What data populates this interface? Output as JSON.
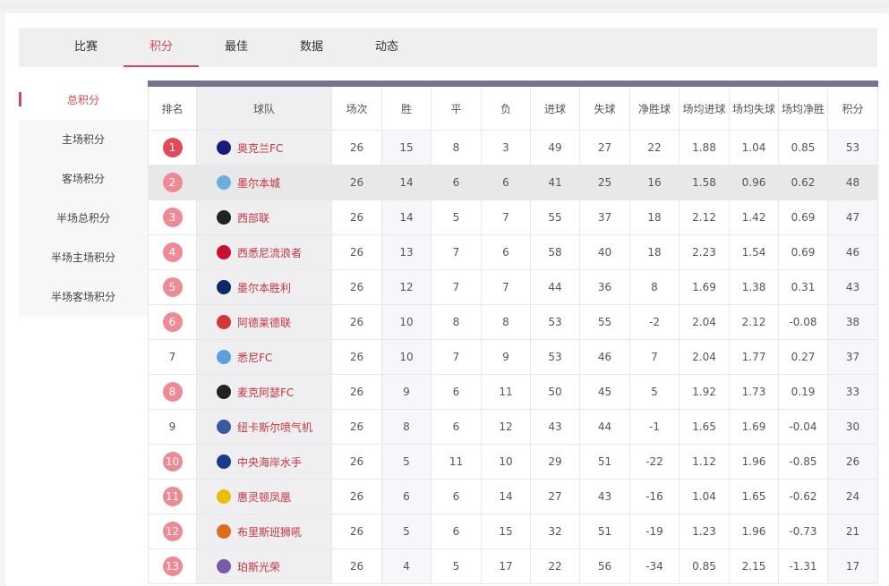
{
  "tabs": [
    "比赛",
    "积分",
    "最佳",
    "数据",
    "动态"
  ],
  "active_tab": 1,
  "sidebar": [
    "总积分",
    "主场积分",
    "客场积分",
    "半场总积分",
    "半场主场积分",
    "半场客场积分"
  ],
  "columns": [
    "排名",
    "球队",
    "场次",
    "胜",
    "平",
    "负",
    "进球",
    "失球",
    "净胜球",
    "场均进球",
    "场均失球",
    "场均净胜",
    "积分"
  ],
  "accent": "#d04858",
  "rows": [
    {
      "rank": "1",
      "badge": true,
      "team": "奥克兰FC",
      "logo": "#1a1a7a",
      "v": [
        "26",
        "15",
        "8",
        "3",
        "49",
        "27",
        "22",
        "1.88",
        "1.04",
        "0.85",
        "53"
      ]
    },
    {
      "rank": "2",
      "badge": true,
      "team": "墨尔本城",
      "logo": "#6aaedc",
      "v": [
        "26",
        "14",
        "6",
        "6",
        "41",
        "25",
        "16",
        "1.58",
        "0.96",
        "0.62",
        "48"
      ]
    },
    {
      "rank": "3",
      "badge": true,
      "team": "西部联",
      "logo": "#222222",
      "v": [
        "26",
        "14",
        "5",
        "7",
        "55",
        "37",
        "18",
        "2.12",
        "1.42",
        "0.69",
        "47"
      ]
    },
    {
      "rank": "4",
      "badge": true,
      "team": "西悉尼流浪者",
      "logo": "#c8102e",
      "v": [
        "26",
        "13",
        "7",
        "6",
        "58",
        "40",
        "18",
        "2.23",
        "1.54",
        "0.69",
        "46"
      ]
    },
    {
      "rank": "5",
      "badge": true,
      "team": "墨尔本胜利",
      "logo": "#0a2a6a",
      "v": [
        "26",
        "12",
        "7",
        "7",
        "44",
        "36",
        "8",
        "1.69",
        "1.38",
        "0.31",
        "43"
      ]
    },
    {
      "rank": "6",
      "badge": true,
      "team": "阿德莱德联",
      "logo": "#d23a3a",
      "v": [
        "26",
        "10",
        "8",
        "8",
        "53",
        "55",
        "-2",
        "2.04",
        "2.12",
        "-0.08",
        "38"
      ]
    },
    {
      "rank": "7",
      "badge": false,
      "team": "悉尼FC",
      "logo": "#5aa0dc",
      "v": [
        "26",
        "10",
        "7",
        "9",
        "53",
        "46",
        "7",
        "2.04",
        "1.77",
        "0.27",
        "37"
      ]
    },
    {
      "rank": "8",
      "badge": true,
      "team": "麦克阿瑟FC",
      "logo": "#222222",
      "v": [
        "26",
        "9",
        "6",
        "11",
        "50",
        "45",
        "5",
        "1.92",
        "1.73",
        "0.19",
        "33"
      ]
    },
    {
      "rank": "9",
      "badge": false,
      "team": "纽卡斯尔喷气机",
      "logo": "#3a5aa0",
      "v": [
        "26",
        "8",
        "6",
        "12",
        "43",
        "44",
        "-1",
        "1.65",
        "1.69",
        "-0.04",
        "30"
      ]
    },
    {
      "rank": "10",
      "badge": true,
      "team": "中央海岸水手",
      "logo": "#1a3a8a",
      "v": [
        "26",
        "5",
        "11",
        "10",
        "29",
        "51",
        "-22",
        "1.12",
        "1.96",
        "-0.85",
        "26"
      ]
    },
    {
      "rank": "11",
      "badge": true,
      "team": "惠灵顿凤凰",
      "logo": "#e8c000",
      "v": [
        "26",
        "6",
        "6",
        "14",
        "27",
        "43",
        "-16",
        "1.04",
        "1.65",
        "-0.62",
        "24"
      ]
    },
    {
      "rank": "12",
      "badge": true,
      "team": "布里斯班狮吼",
      "logo": "#e06a20",
      "v": [
        "26",
        "5",
        "6",
        "15",
        "32",
        "51",
        "-19",
        "1.23",
        "1.96",
        "-0.73",
        "21"
      ]
    },
    {
      "rank": "13",
      "badge": true,
      "team": "珀斯光荣",
      "logo": "#7a5aa8",
      "v": [
        "26",
        "4",
        "5",
        "17",
        "22",
        "56",
        "-34",
        "0.85",
        "2.15",
        "-1.31",
        "17"
      ]
    }
  ]
}
